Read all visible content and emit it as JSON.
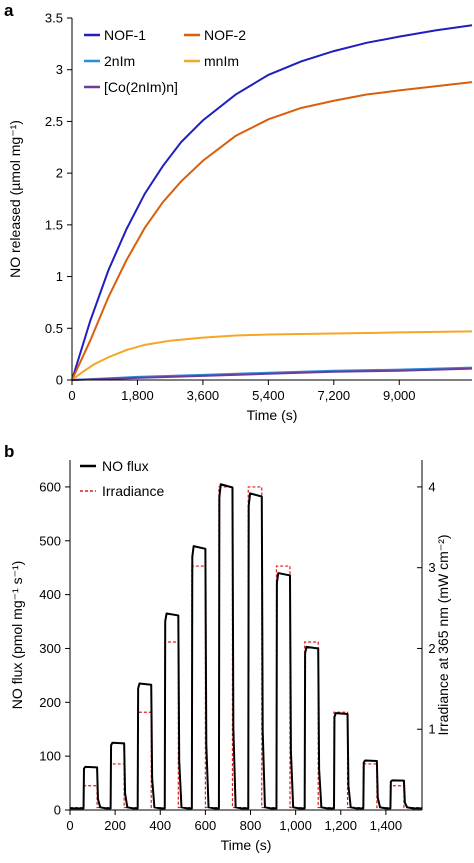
{
  "chart_data": [
    {
      "panel_label": "a",
      "type": "line",
      "xlabel": "Time (s)",
      "ylabel": "NO released (µmol mg⁻¹)",
      "xlim": [
        0,
        11000
      ],
      "ylim": [
        0,
        3.5
      ],
      "xticks": [
        0,
        1800,
        3600,
        5400,
        7200,
        9000
      ],
      "xtick_labels": [
        "0",
        "1,800",
        "3,600",
        "5,400",
        "7,200",
        "9,000"
      ],
      "yticks": [
        0,
        0.5,
        1,
        1.5,
        2,
        2.5,
        3,
        3.5
      ],
      "ytick_labels": [
        "0",
        "0.5",
        "1",
        "1.5",
        "2",
        "2.5",
        "3",
        "3.5"
      ],
      "legend_position": "top-left",
      "series": [
        {
          "name": "NOF-1",
          "color": "#1f1fbf",
          "x": [
            0,
            500,
            1000,
            1500,
            2000,
            2500,
            3000,
            3600,
            4500,
            5400,
            6300,
            7200,
            8100,
            9000,
            10000,
            11000
          ],
          "y": [
            0,
            0.57,
            1.06,
            1.46,
            1.8,
            2.07,
            2.3,
            2.51,
            2.76,
            2.95,
            3.08,
            3.18,
            3.26,
            3.32,
            3.38,
            3.43
          ]
        },
        {
          "name": "NOF-2",
          "color": "#d95f0e",
          "x": [
            0,
            500,
            1000,
            1500,
            2000,
            2500,
            3000,
            3600,
            4500,
            5400,
            6300,
            7200,
            8100,
            9000,
            10000,
            11000
          ],
          "y": [
            0,
            0.38,
            0.8,
            1.16,
            1.47,
            1.72,
            1.92,
            2.12,
            2.36,
            2.52,
            2.63,
            2.7,
            2.76,
            2.8,
            2.84,
            2.88
          ]
        },
        {
          "name": "2nIm",
          "color": "#2b8cd6",
          "x": [
            0,
            1800,
            3600,
            5400,
            7200,
            9000,
            11000
          ],
          "y": [
            0,
            0.03,
            0.05,
            0.07,
            0.09,
            0.1,
            0.12
          ]
        },
        {
          "name": "mnIm",
          "color": "#f5a623",
          "x": [
            0,
            300,
            600,
            1000,
            1500,
            2000,
            2700,
            3600,
            4500,
            5400,
            7200,
            9000,
            11000
          ],
          "y": [
            0,
            0.08,
            0.15,
            0.22,
            0.29,
            0.34,
            0.38,
            0.41,
            0.43,
            0.44,
            0.45,
            0.46,
            0.47
          ]
        },
        {
          "name": "[Co(2nIm)n]",
          "color": "#6a3d9a",
          "x": [
            0,
            1800,
            3600,
            5400,
            7200,
            9000,
            11000
          ],
          "y": [
            0,
            0.02,
            0.04,
            0.06,
            0.08,
            0.09,
            0.11
          ]
        }
      ]
    },
    {
      "panel_label": "b",
      "type": "line",
      "xlabel": "Time (s)",
      "ylabel": "NO flux (pmol mg⁻¹ s⁻¹)",
      "ylabel_right": "Irradiance at 365 nm (mW cm⁻²)",
      "xlim": [
        0,
        1560
      ],
      "ylim": [
        0,
        650
      ],
      "ylim_right": [
        0,
        4.3333
      ],
      "xticks": [
        0,
        200,
        400,
        600,
        800,
        1000,
        1200,
        1400
      ],
      "xtick_labels": [
        "0",
        "200",
        "400",
        "600",
        "800",
        "1,000",
        "1,200",
        "1,400"
      ],
      "yticks": [
        0,
        100,
        200,
        300,
        400,
        500,
        600
      ],
      "ytick_labels": [
        "0",
        "100",
        "200",
        "300",
        "400",
        "500",
        "600"
      ],
      "yticks_right": [
        1,
        2,
        3,
        4
      ],
      "ytick_labels_right": [
        "1",
        "2",
        "3",
        "4"
      ],
      "legend_position": "top-left",
      "pulse_starts": [
        60,
        180,
        300,
        420,
        540,
        660,
        790,
        915,
        1040,
        1170,
        1300,
        1420
      ],
      "pulse_width": 60,
      "series": [
        {
          "name": "NO flux",
          "color": "#000000",
          "pulse_peaks": [
            80,
            125,
            235,
            365,
            490,
            605,
            588,
            440,
            303,
            180,
            92,
            55
          ],
          "baseline": 3
        },
        {
          "name": "Irradiance",
          "color": "#e31a1c",
          "style": "dashed",
          "axis": "right",
          "pulse_levels": [
            0.3,
            0.57,
            1.21,
            2.08,
            3.02,
            4.0,
            4.0,
            3.02,
            2.08,
            1.21,
            0.57,
            0.3
          ],
          "baseline": 0.03
        }
      ]
    }
  ]
}
